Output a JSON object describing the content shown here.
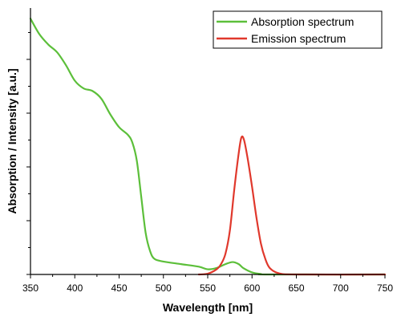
{
  "chart_data": {
    "type": "line",
    "xlabel": "Wavelength [nm]",
    "ylabel": "Absorption / Intensity [a.u.]",
    "xlim": [
      350,
      750
    ],
    "ylim": [
      0,
      1
    ],
    "x_ticks": [
      350,
      400,
      450,
      500,
      550,
      600,
      650,
      700,
      750
    ],
    "y_tick_labels_shown": false,
    "legend_position": "top-right",
    "series": [
      {
        "name": "Absorption spectrum",
        "color": "#5cbf3a",
        "points": [
          [
            350,
            0.99
          ],
          [
            360,
            0.93
          ],
          [
            370,
            0.89
          ],
          [
            380,
            0.86
          ],
          [
            390,
            0.81
          ],
          [
            400,
            0.75
          ],
          [
            410,
            0.72
          ],
          [
            420,
            0.71
          ],
          [
            430,
            0.68
          ],
          [
            440,
            0.62
          ],
          [
            450,
            0.57
          ],
          [
            460,
            0.54
          ],
          [
            465,
            0.51
          ],
          [
            470,
            0.44
          ],
          [
            475,
            0.3
          ],
          [
            480,
            0.16
          ],
          [
            485,
            0.09
          ],
          [
            490,
            0.06
          ],
          [
            500,
            0.05
          ],
          [
            520,
            0.04
          ],
          [
            540,
            0.03
          ],
          [
            550,
            0.02
          ],
          [
            560,
            0.025
          ],
          [
            570,
            0.04
          ],
          [
            578,
            0.048
          ],
          [
            585,
            0.04
          ],
          [
            590,
            0.025
          ],
          [
            600,
            0.008
          ],
          [
            610,
            0.002
          ],
          [
            620,
            0.0
          ],
          [
            750,
            0.0
          ]
        ]
      },
      {
        "name": "Emission spectrum",
        "color": "#e0382c",
        "points": [
          [
            540,
            0.0
          ],
          [
            550,
            0.003
          ],
          [
            560,
            0.02
          ],
          [
            565,
            0.04
          ],
          [
            570,
            0.08
          ],
          [
            575,
            0.17
          ],
          [
            580,
            0.33
          ],
          [
            585,
            0.47
          ],
          [
            588,
            0.53
          ],
          [
            591,
            0.52
          ],
          [
            595,
            0.45
          ],
          [
            600,
            0.34
          ],
          [
            605,
            0.22
          ],
          [
            610,
            0.12
          ],
          [
            615,
            0.06
          ],
          [
            620,
            0.025
          ],
          [
            630,
            0.005
          ],
          [
            650,
            0.0
          ],
          [
            750,
            0.0
          ]
        ]
      }
    ]
  }
}
